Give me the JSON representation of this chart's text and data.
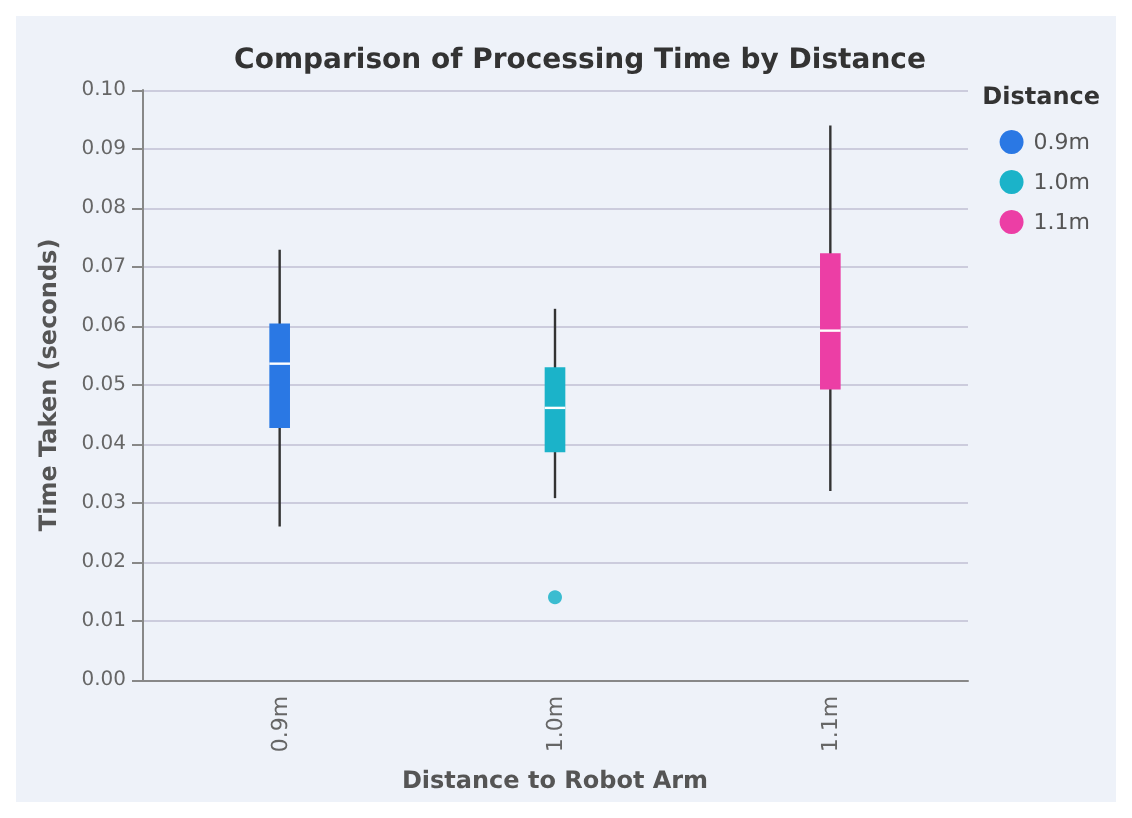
{
  "chart_data": {
    "type": "box",
    "title": "Comparison of Processing Time by Distance",
    "xlabel": "Distance to Robot Arm",
    "ylabel": "Time Taken (seconds)",
    "legend_title": "Distance",
    "categories": [
      "0.9m",
      "1.0m",
      "1.1m"
    ],
    "series": [
      {
        "name": "0.9m",
        "color": "#2a78e4",
        "boxes": [
          {
            "low": 0.026,
            "q1": 0.0427,
            "median": 0.0536,
            "q3": 0.0604,
            "high": 0.0729
          },
          null,
          null
        ]
      },
      {
        "name": "1.0m",
        "color": "#1bb3c9",
        "boxes": [
          null,
          {
            "low": 0.0308,
            "q1": 0.0386,
            "median": 0.0461,
            "q3": 0.053,
            "high": 0.0629,
            "outliers": [
              0.014
            ]
          },
          null
        ]
      },
      {
        "name": "1.1m",
        "color": "#ec3ea5",
        "boxes": [
          null,
          null,
          {
            "low": 0.032,
            "q1": 0.0492,
            "median": 0.0592,
            "q3": 0.0723,
            "high": 0.094
          }
        ]
      }
    ],
    "ylim": [
      0,
      0.1
    ],
    "yticks": [
      {
        "value": 0,
        "label": "0.00"
      },
      {
        "value": 0.01,
        "label": "0.01"
      },
      {
        "value": 0.02,
        "label": "0.02"
      },
      {
        "value": 0.03,
        "label": "0.03"
      },
      {
        "value": 0.04,
        "label": "0.04"
      },
      {
        "value": 0.05,
        "label": "0.05"
      },
      {
        "value": 0.06,
        "label": "0.06"
      },
      {
        "value": 0.07,
        "label": "0.07"
      },
      {
        "value": 0.08,
        "label": "0.08"
      },
      {
        "value": 0.09,
        "label": "0.09"
      },
      {
        "value": 0.1,
        "label": "0.10"
      }
    ],
    "grid": "y",
    "legend": "top right"
  }
}
